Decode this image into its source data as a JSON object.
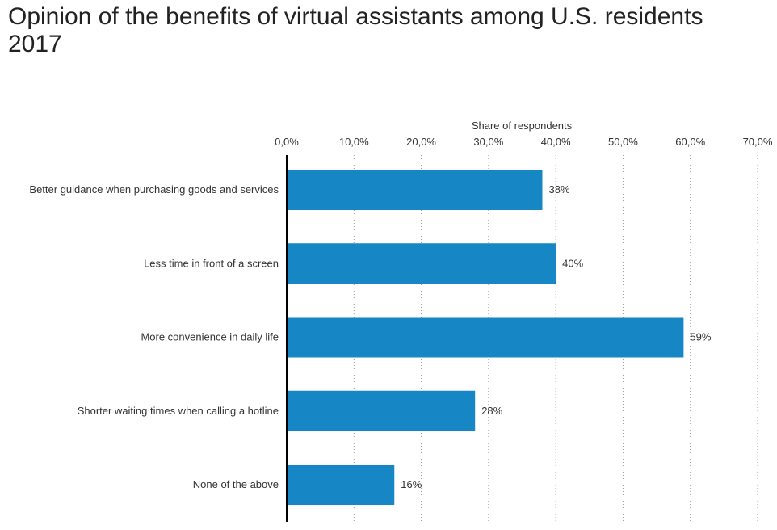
{
  "chart_data": {
    "type": "bar",
    "orientation": "horizontal",
    "title": "Opinion of the benefits of virtual assistants among U.S. residents 2017",
    "xlabel": "Share of respondents",
    "ylabel": "",
    "categories": [
      "Better guidance when purchasing goods and services",
      "Less time in front of a screen",
      "More convenience in daily life",
      "Shorter waiting times when calling a hotline",
      "None of the above"
    ],
    "values": [
      38,
      40,
      59,
      28,
      16
    ],
    "value_labels": [
      "38%",
      "40%",
      "59%",
      "28%",
      "16%"
    ],
    "xlim": [
      0,
      70
    ],
    "ticks": [
      0,
      10,
      20,
      30,
      40,
      50,
      60,
      70
    ],
    "tick_labels": [
      "0,0%",
      "10,0%",
      "20,0%",
      "30,0%",
      "40,0%",
      "50,0%",
      "60,0%",
      "70,0%"
    ],
    "axis_position": "top",
    "grid": true,
    "legend": "none",
    "bar_color": "#1686c5"
  }
}
